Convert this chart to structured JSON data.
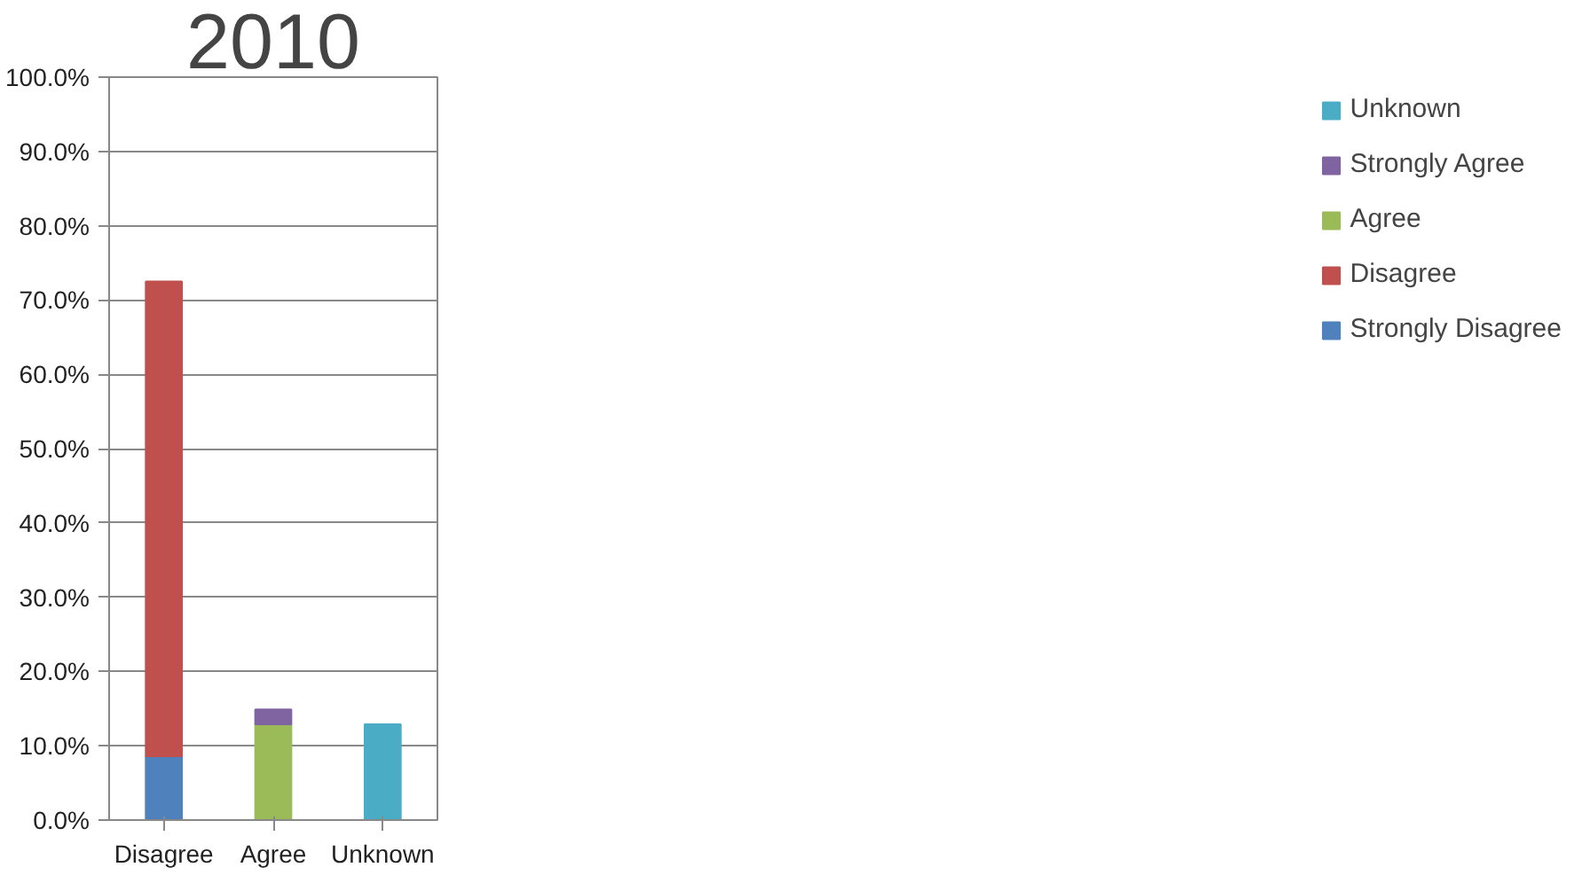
{
  "chart_data": {
    "type": "bar",
    "title": "2010",
    "stacked": true,
    "categories": [
      "Disagree",
      "Agree",
      "Unknown"
    ],
    "series": [
      {
        "name": "Strongly Disagree",
        "color": "#4f81bd",
        "values": [
          8.6,
          null,
          null
        ]
      },
      {
        "name": "Disagree",
        "color": "#c0504d",
        "values": [
          63.9,
          null,
          null
        ]
      },
      {
        "name": "Agree",
        "color": "#9bbb59",
        "values": [
          null,
          12.9,
          null
        ]
      },
      {
        "name": "Strongly Agree",
        "color": "#8064a2",
        "values": [
          null,
          2.0,
          null
        ]
      },
      {
        "name": "Unknown",
        "color": "#4bacc6",
        "values": [
          null,
          null,
          12.9
        ]
      }
    ],
    "ylim": [
      0,
      100
    ],
    "yticks": [
      {
        "value": 0,
        "label": "0.0%"
      },
      {
        "value": 10,
        "label": "10.0%"
      },
      {
        "value": 20,
        "label": "20.0%"
      },
      {
        "value": 30,
        "label": "30.0%"
      },
      {
        "value": 40,
        "label": "40.0%"
      },
      {
        "value": 50,
        "label": "50.0%"
      },
      {
        "value": 60,
        "label": "60.0%"
      },
      {
        "value": 70,
        "label": "70.0%"
      },
      {
        "value": 80,
        "label": "80.0%"
      },
      {
        "value": 90,
        "label": "90.0%"
      },
      {
        "value": 100,
        "label": "100.0%"
      }
    ],
    "grid": "y",
    "legend": "right"
  }
}
